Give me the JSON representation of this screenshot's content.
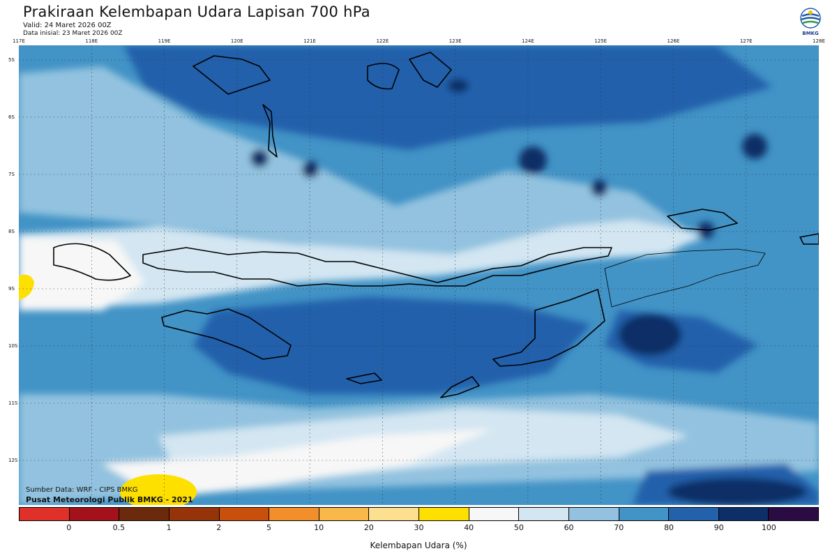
{
  "header": {
    "title": "Prakiraan Kelembapan Udara Lapisan 700 hPa",
    "valid": "Valid: 24 Maret 2026 00Z",
    "initial": "Data inisial: 23 Maret 2026 00Z",
    "logo_text": "BMKG"
  },
  "map": {
    "lon_ticks": [
      "117E",
      "118E",
      "119E",
      "120E",
      "121E",
      "122E",
      "123E",
      "124E",
      "125E",
      "126E",
      "127E",
      "128E"
    ],
    "lat_ticks": [
      "5S",
      "6S",
      "7S",
      "8S",
      "9S",
      "10S",
      "11S",
      "12S"
    ]
  },
  "credits": {
    "source": "Sumber Data: WRF - CIPS BMKG",
    "org": "Pusat Meteorologi Publik BMKG - 2021"
  },
  "colorbar": {
    "title": "Kelembapan Udara (%)",
    "labels": [
      "0",
      "0.5",
      "1",
      "2",
      "5",
      "10",
      "20",
      "30",
      "40",
      "50",
      "60",
      "70",
      "80",
      "90",
      "100"
    ],
    "colors": [
      "#e0302a",
      "#a3111a",
      "#6b2a0c",
      "#963409",
      "#c9500c",
      "#f28f2a",
      "#f9b84a",
      "#fde08f",
      "#fee000",
      "#f7f7f7",
      "#d3e6f2",
      "#92c2df",
      "#4293c6",
      "#2461ab",
      "#0b2f66",
      "#2b0b43"
    ]
  }
}
